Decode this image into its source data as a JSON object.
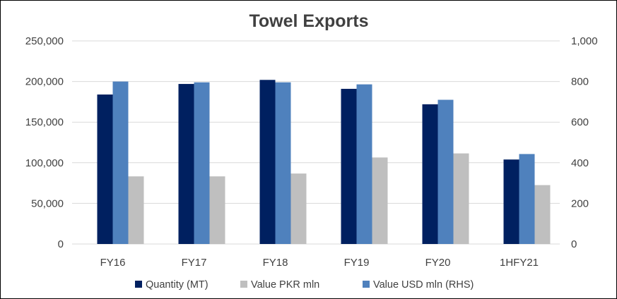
{
  "chart_data": {
    "type": "bar",
    "title": "Towel Exports",
    "categories": [
      "FY16",
      "FY17",
      "FY18",
      "FY19",
      "FY20",
      "1HFY21"
    ],
    "series": [
      {
        "name": "Quantity (MT)",
        "axis": "left",
        "color": "#002060",
        "values": [
          184000,
          197000,
          202000,
          191000,
          172000,
          104000
        ]
      },
      {
        "name": "Value USD mln (RHS)",
        "axis": "right",
        "color": "#4F81BD",
        "values": [
          800,
          796,
          796,
          786,
          710,
          443
        ]
      },
      {
        "name": "Value PKR mln",
        "axis": "right",
        "color": "#BFBFBF",
        "values": [
          333,
          333,
          347,
          426,
          446,
          290
        ]
      }
    ],
    "legend_order": [
      "Quantity (MT)",
      "Value PKR mln",
      "Value USD mln (RHS)"
    ],
    "legend_position": "bottom",
    "y_left": {
      "min": 0,
      "max": 250000,
      "ticks": [
        "0",
        "50,000",
        "100,000",
        "150,000",
        "200,000",
        "250,000"
      ]
    },
    "y_right": {
      "min": 0,
      "max": 1000,
      "ticks": [
        "0",
        "200",
        "400",
        "600",
        "800",
        "1,000"
      ]
    },
    "grid": true
  }
}
